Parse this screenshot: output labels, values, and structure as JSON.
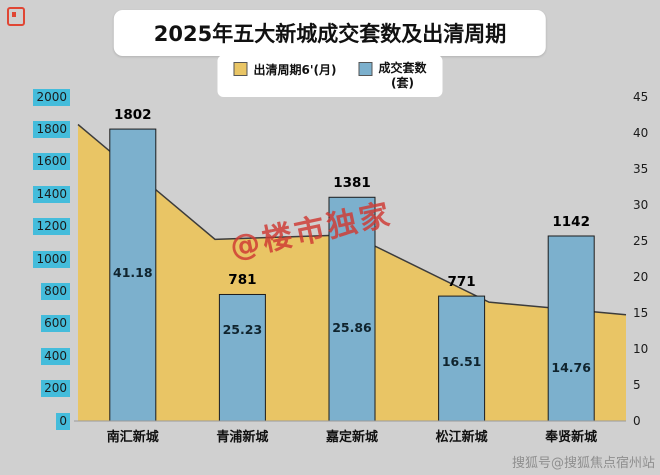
{
  "chart": {
    "title": "2025年五大新城成交套数及出清周期",
    "legend": {
      "area_label": "出清周期6'(月)",
      "bar_label": "成交套数",
      "bar_label_unit": "(套)"
    }
  },
  "chart_data": {
    "type": "combo",
    "title": "2025年五大新城成交套数及出清周期",
    "categories": [
      "南汇新城",
      "青浦新城",
      "嘉定新城",
      "松江新城",
      "奉贤新城"
    ],
    "series": [
      {
        "name": "出清周期6'(月)",
        "type": "area",
        "axis": "right",
        "values": [
          41.18,
          25.23,
          25.86,
          16.51,
          14.76
        ],
        "color": "#e9c565",
        "edge_color": "#3c3c3c"
      },
      {
        "name": "成交套数(套)",
        "type": "bar",
        "axis": "left",
        "values": [
          1802,
          781,
          1381,
          771,
          1142
        ],
        "color": "#7cb0cd",
        "edge_color": "#1c1c1c"
      }
    ],
    "left_axis": {
      "min": 0,
      "max": 2000,
      "step": 200
    },
    "right_axis": {
      "min": 0,
      "max": 45,
      "step": 5
    },
    "grid": false,
    "legend_position": "top",
    "tick_highlight_color": "#44bcdb"
  },
  "watermark": {
    "text": "@楼市独家"
  },
  "footer": {
    "text": "搜狐号@搜狐焦点宿州站"
  }
}
